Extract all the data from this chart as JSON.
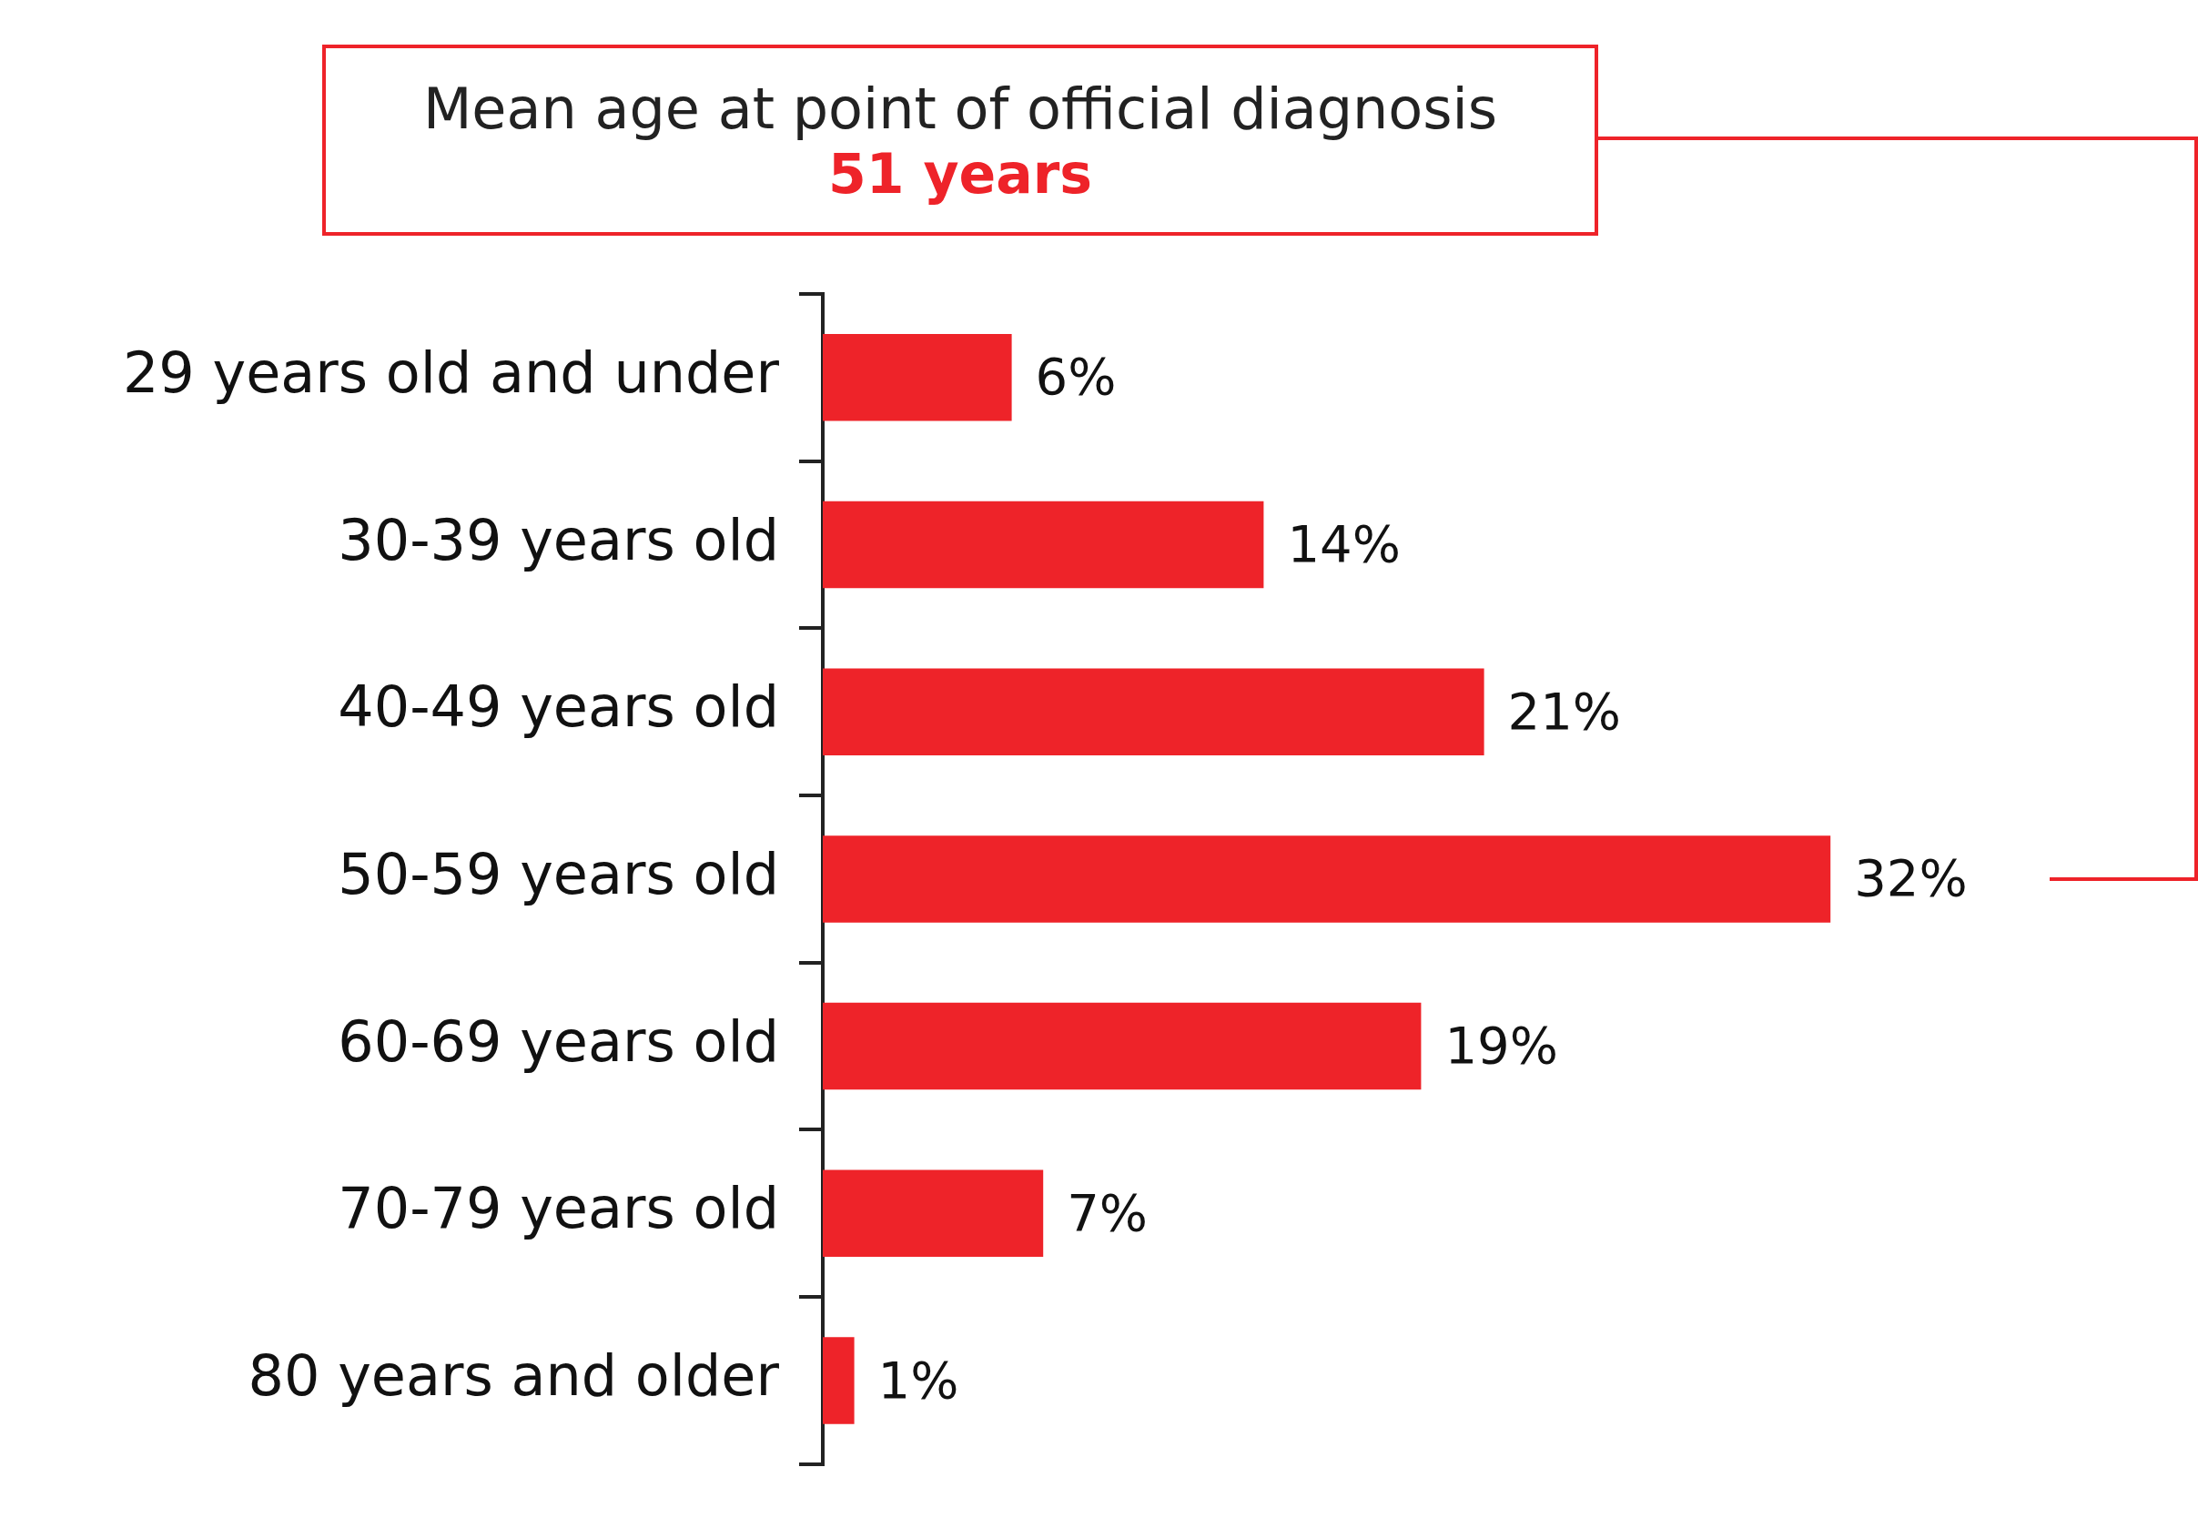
{
  "chart_data": {
    "type": "bar",
    "orientation": "horizontal",
    "tick_labels": "y",
    "categories": [
      "29 years old and under",
      "30-39 years old",
      "40-49 years old",
      "50-59 years old",
      "60-69 years old",
      "70-79 years old",
      "80 years and older"
    ],
    "values": [
      6,
      14,
      21,
      32,
      19,
      7,
      1
    ],
    "value_labels": [
      "6%",
      "14%",
      "21%",
      "32%",
      "19%",
      "7%",
      "1%"
    ],
    "color": "#ee2329",
    "legend": false,
    "annotations": [
      "Mean age at point of official diagnosis",
      "51 years"
    ]
  }
}
